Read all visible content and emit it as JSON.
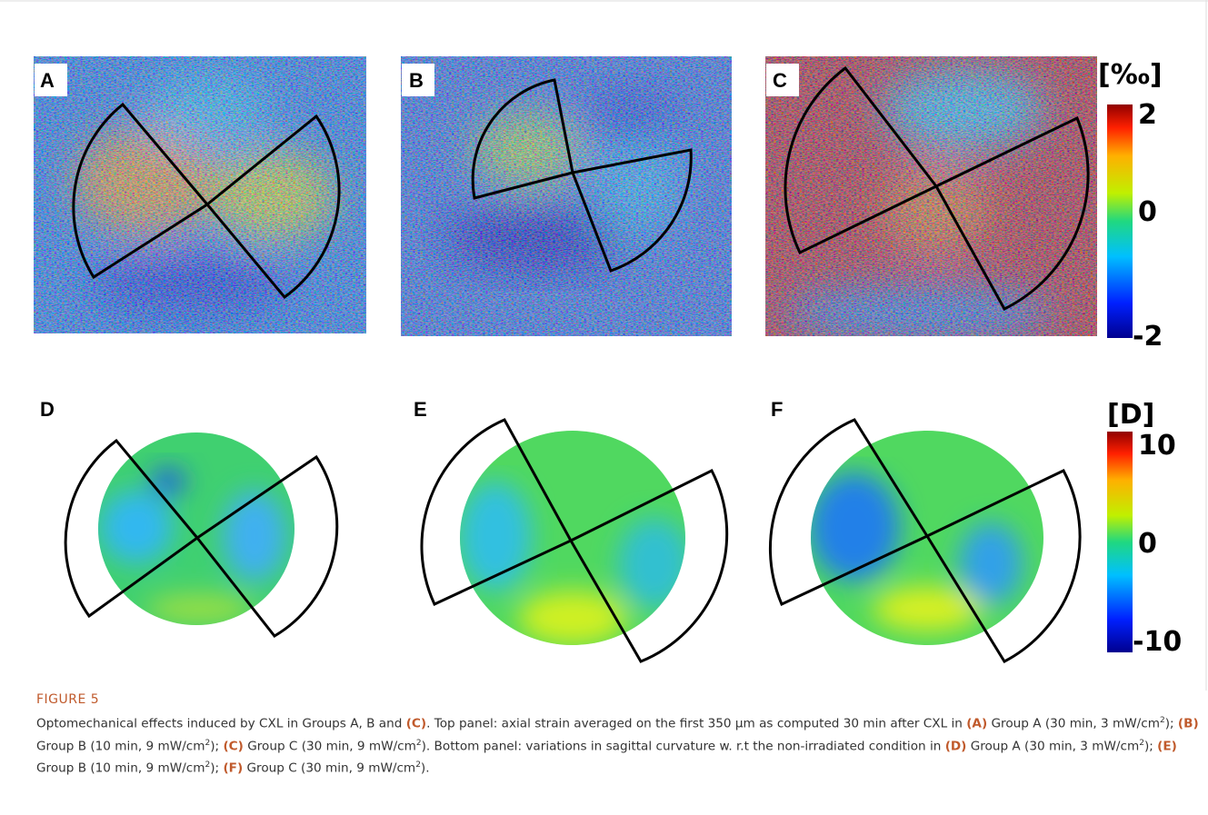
{
  "panels": [
    "A",
    "B",
    "C",
    "D",
    "E",
    "F"
  ],
  "colorbars": [
    {
      "unit": "[‰]",
      "ticks": [
        "2",
        "0",
        "-2"
      ]
    },
    {
      "unit": "[D]",
      "ticks": [
        "10",
        "0",
        "-10"
      ]
    }
  ],
  "caption": {
    "label": "FIGURE 5",
    "parts": [
      {
        "text": "Optomechanical effects induced by CXL in Groups A, B and "
      },
      {
        "text": "(C)",
        "style": "bold"
      },
      {
        "text": ". Top panel: axial strain averaged on the first 350 μm as computed 30 min after CXL in "
      },
      {
        "text": "(A)",
        "style": "bold"
      },
      {
        "text": " Group A (30 min, 3 mW/cm"
      },
      {
        "text": "2",
        "style": "sup"
      },
      {
        "text": "); "
      },
      {
        "text": "(B)",
        "style": "bold"
      },
      {
        "text": " Group B (10 min, 9 mW/cm"
      },
      {
        "text": "2",
        "style": "sup"
      },
      {
        "text": "); "
      },
      {
        "text": "(C)",
        "style": "bold"
      },
      {
        "text": " Group C (30 min, 9 mW/cm"
      },
      {
        "text": "2",
        "style": "sup"
      },
      {
        "text": "). Bottom panel: variations in sagittal curvature w. r.t the non-irradiated condition in "
      },
      {
        "text": "(D)",
        "style": "bold"
      },
      {
        "text": " Group A (30 min, 3 mW/cm"
      },
      {
        "text": "2",
        "style": "sup"
      },
      {
        "text": "); "
      },
      {
        "text": "(E)",
        "style": "bold"
      },
      {
        "text": " Group B (10 min, 9 mW/cm"
      },
      {
        "text": "2",
        "style": "sup"
      },
      {
        "text": "); "
      },
      {
        "text": "(F)",
        "style": "bold"
      },
      {
        "text": " Group C (30 min, 9 mW/cm"
      },
      {
        "text": "2",
        "style": "sup"
      },
      {
        "text": ")."
      }
    ]
  }
}
